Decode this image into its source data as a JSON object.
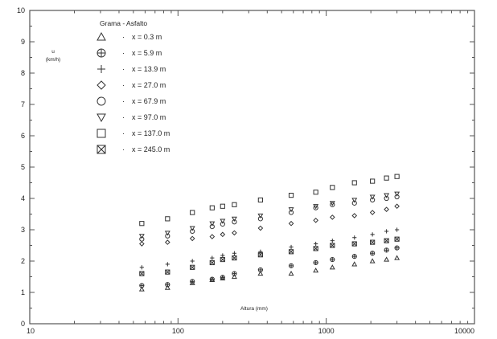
{
  "chart_data": {
    "type": "scatter",
    "title": "Grama - Asfalto",
    "xlabel": "Altura (mm)",
    "ylabel_line1": "u",
    "ylabel_line2": "(km/h)",
    "x_scale": "log",
    "xlim": [
      10,
      10000
    ],
    "ylim": [
      0,
      10
    ],
    "x_ticks": [
      10,
      100,
      1000,
      10000
    ],
    "x_tick_labels": [
      "10",
      "100",
      "1000",
      "10000"
    ],
    "y_ticks": [
      0,
      1,
      2,
      3,
      4,
      5,
      6,
      7,
      8,
      9,
      10
    ],
    "y_tick_labels": [
      "0",
      "1",
      "2",
      "3",
      "4",
      "5",
      "6",
      "7",
      "8",
      "9",
      "10"
    ],
    "grid": false,
    "legend_position": "top-left",
    "x": [
      57,
      85,
      125,
      170,
      200,
      240,
      360,
      580,
      850,
      1100,
      1550,
      2050,
      2550,
      3000
    ],
    "series": [
      {
        "name": "x = 0.3 m",
        "marker": "triangle-up",
        "values": [
          1.1,
          1.15,
          1.3,
          1.4,
          1.45,
          1.5,
          1.6,
          1.6,
          1.7,
          1.8,
          1.9,
          2.0,
          2.05,
          2.1
        ]
      },
      {
        "name": "x = 5.9 m",
        "marker": "circle-plus",
        "values": [
          1.22,
          1.25,
          1.35,
          1.42,
          1.48,
          1.6,
          1.72,
          1.85,
          1.95,
          2.05,
          2.15,
          2.25,
          2.35,
          2.42
        ]
      },
      {
        "name": "x = 13.9 m",
        "marker": "plus",
        "values": [
          1.8,
          1.9,
          2.0,
          2.1,
          2.18,
          2.25,
          2.3,
          2.45,
          2.55,
          2.65,
          2.75,
          2.85,
          2.95,
          3.0
        ]
      },
      {
        "name": "x = 27.0 m",
        "marker": "diamond",
        "values": [
          2.55,
          2.6,
          2.72,
          2.78,
          2.85,
          2.9,
          3.05,
          3.2,
          3.3,
          3.4,
          3.45,
          3.55,
          3.65,
          3.75
        ]
      },
      {
        "name": "x = 67.9 m",
        "marker": "circle",
        "values": [
          2.7,
          2.8,
          2.95,
          3.1,
          3.18,
          3.25,
          3.35,
          3.55,
          3.7,
          3.8,
          3.85,
          3.95,
          4.0,
          4.05
        ]
      },
      {
        "name": "x = 97.0 m",
        "marker": "triangle-down",
        "values": [
          2.8,
          2.9,
          3.05,
          3.2,
          3.28,
          3.35,
          3.45,
          3.65,
          3.75,
          3.85,
          3.95,
          4.05,
          4.1,
          4.15
        ]
      },
      {
        "name": "x = 137.0 m",
        "marker": "square",
        "values": [
          3.2,
          3.35,
          3.55,
          3.7,
          3.75,
          3.8,
          3.95,
          4.1,
          4.2,
          4.35,
          4.5,
          4.55,
          4.65,
          4.7
        ]
      },
      {
        "name": "x = 245.0 m",
        "marker": "square-x",
        "values": [
          1.6,
          1.65,
          1.8,
          1.95,
          2.05,
          2.1,
          2.2,
          2.3,
          2.4,
          2.5,
          2.55,
          2.6,
          2.65,
          2.7
        ]
      }
    ]
  }
}
